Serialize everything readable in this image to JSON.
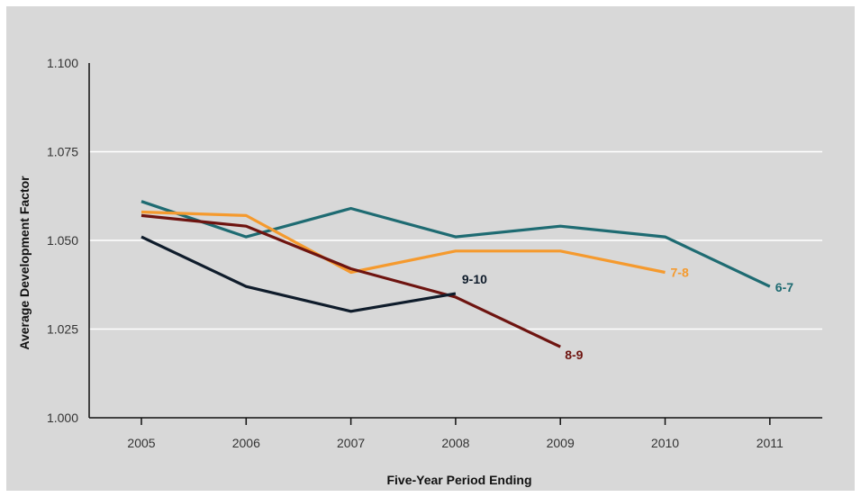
{
  "chart_data": {
    "type": "line",
    "title": "",
    "xlabel": "Five-Year Period Ending",
    "ylabel": "Average Development Factor",
    "x": [
      2005,
      2006,
      2007,
      2008,
      2009,
      2010,
      2011
    ],
    "x_tick_labels": [
      "2005",
      "2006",
      "2007",
      "2008",
      "2009",
      "2010",
      "2011"
    ],
    "y_tick_labels": [
      "1.000",
      "1.025",
      "1.050",
      "1.075",
      "1.100"
    ],
    "y_ticks": [
      1.0,
      1.025,
      1.05,
      1.075,
      1.1
    ],
    "ylim": [
      1.0,
      1.1
    ],
    "grid": "horizontal",
    "legend": "inline labels at series ends",
    "series": [
      {
        "name": "6-7",
        "color": "#1e6b72",
        "x": [
          2005,
          2006,
          2007,
          2008,
          2009,
          2010,
          2011
        ],
        "values": [
          1.061,
          1.051,
          1.059,
          1.051,
          1.054,
          1.051,
          1.037
        ]
      },
      {
        "name": "7-8",
        "color": "#f59a2e",
        "x": [
          2005,
          2006,
          2007,
          2008,
          2009,
          2010
        ],
        "values": [
          1.058,
          1.057,
          1.041,
          1.047,
          1.047,
          1.041
        ]
      },
      {
        "name": "8-9",
        "color": "#6e1410",
        "x": [
          2005,
          2006,
          2007,
          2008,
          2009
        ],
        "values": [
          1.057,
          1.054,
          1.042,
          1.034,
          1.02
        ]
      },
      {
        "name": "9-10",
        "color": "#0f1c2b",
        "x": [
          2005,
          2006,
          2007,
          2008
        ],
        "values": [
          1.051,
          1.037,
          1.03,
          1.035
        ]
      }
    ]
  }
}
